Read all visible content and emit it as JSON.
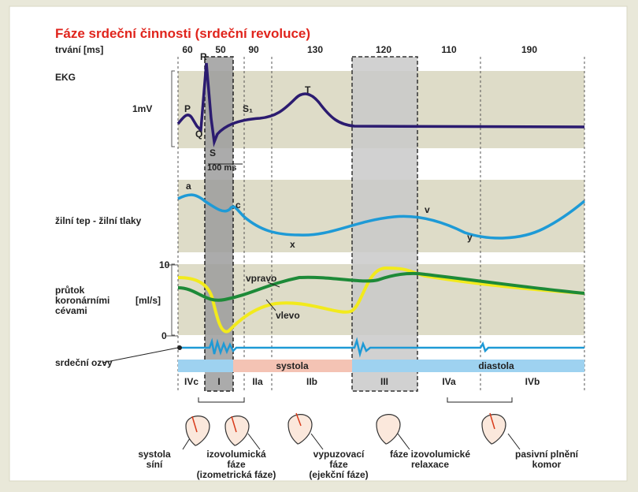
{
  "title": "Fáze srdeční činnosti (srdeční revoluce)",
  "duration_label": "trvání [ms]",
  "durations": [
    "60",
    "50",
    "90",
    "130",
    "120",
    "110",
    "190"
  ],
  "ekg": {
    "label": "EKG",
    "scale": "1mV",
    "waves": [
      "P",
      "Q",
      "R",
      "S",
      "S₁",
      "T"
    ],
    "interval": "100 ms"
  },
  "venous": {
    "label": "žilní tep - žilní tlaky",
    "waves": [
      "a",
      "c",
      "x",
      "v",
      "y"
    ]
  },
  "flow": {
    "label": [
      "průtok",
      "koronárními",
      "cévami"
    ],
    "unit": "[ml/s]",
    "ticks": [
      "10",
      "0"
    ],
    "curves": [
      "vpravo",
      "vlevo"
    ]
  },
  "sounds": {
    "label": "srdeční ozvy"
  },
  "periods": [
    "systola",
    "diastola"
  ],
  "phases": [
    "IVc",
    "I",
    "IIa",
    "IIb",
    "III",
    "IVa",
    "IVb"
  ],
  "captions": [
    [
      "systola",
      "síní"
    ],
    [
      "izovolumická",
      "fáze",
      "(izometrická fáze)"
    ],
    [
      "vypuzovací",
      "fáze",
      "(ejekční fáze)"
    ],
    [
      "fáze izovolumické",
      "relaxace"
    ],
    [
      "pasivní plnění",
      "komor"
    ]
  ]
}
